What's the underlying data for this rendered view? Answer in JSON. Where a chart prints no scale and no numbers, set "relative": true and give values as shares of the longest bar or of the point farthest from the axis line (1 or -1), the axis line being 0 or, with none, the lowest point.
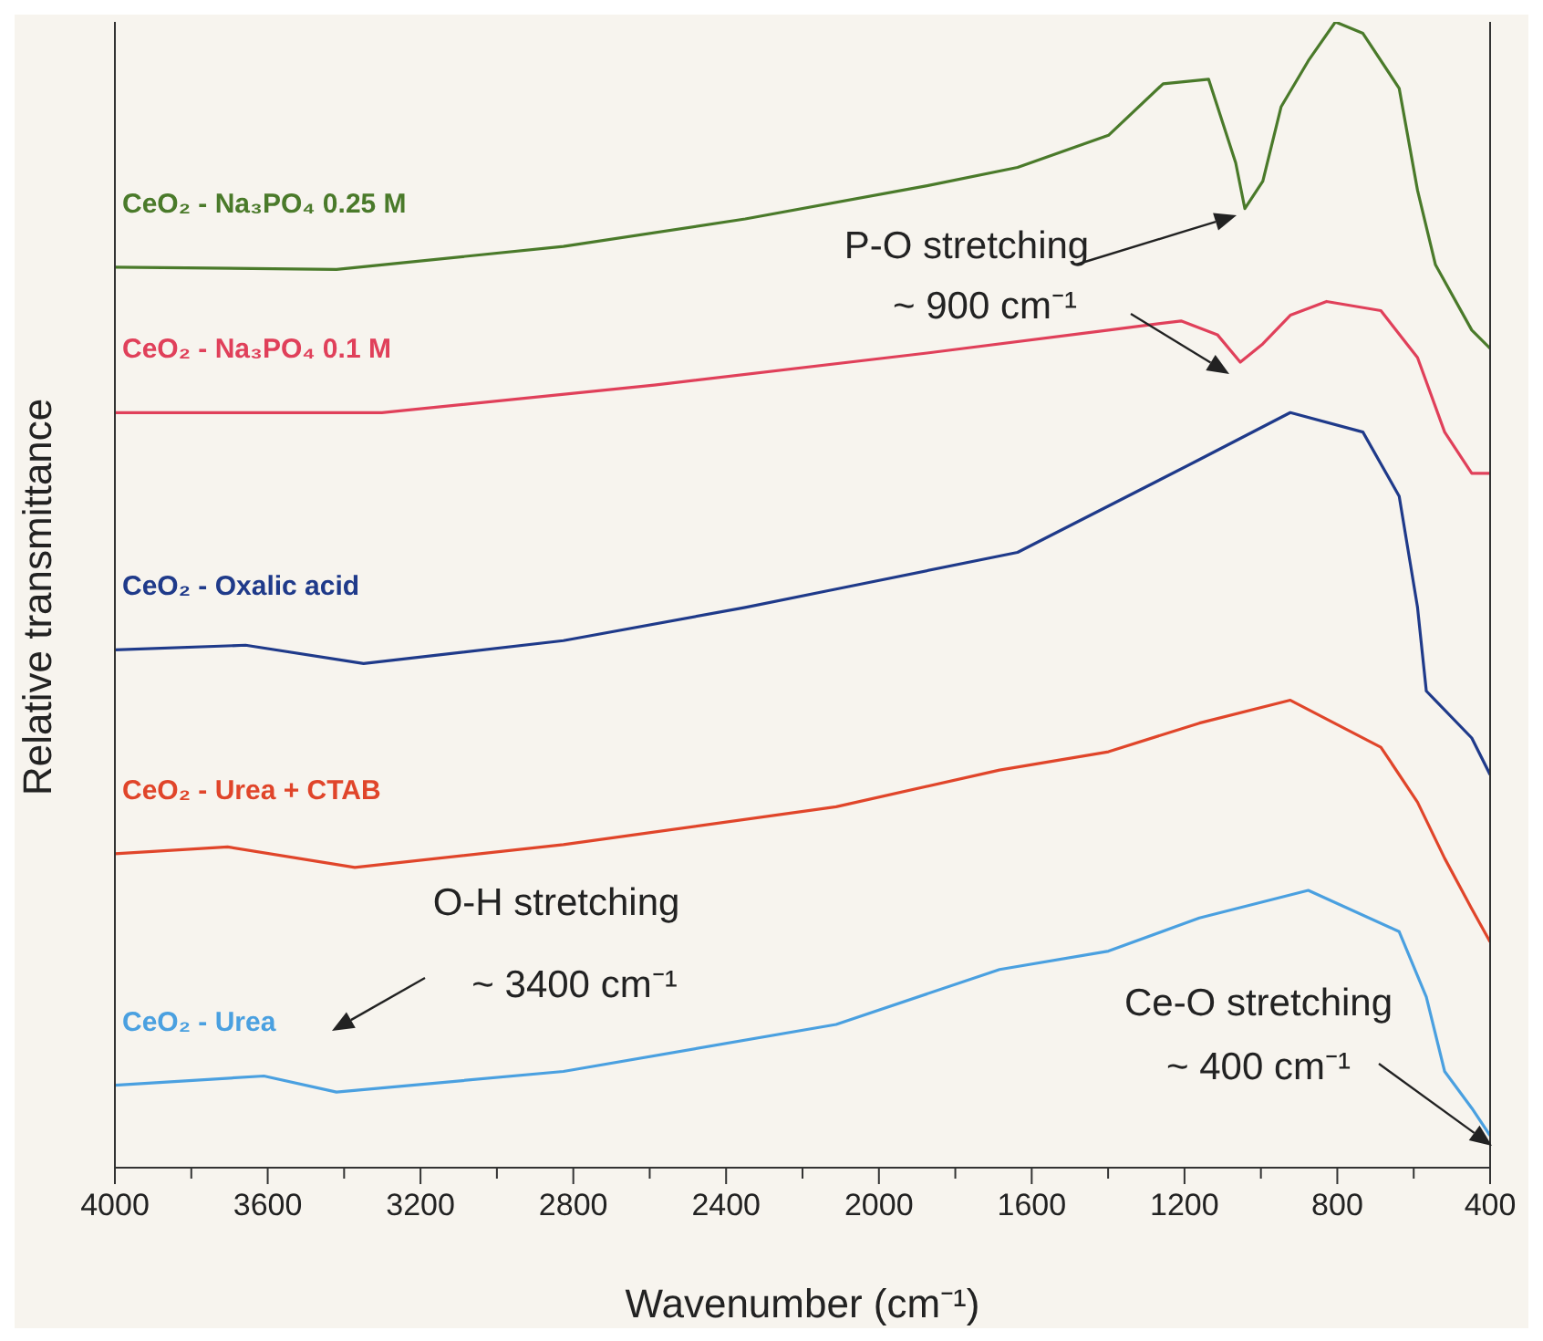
{
  "chart_data": {
    "type": "line",
    "relative": true,
    "xlabel": "Wavenumber (cm⁻¹)",
    "ylabel": "Relative transmittance",
    "xlim": [
      4000,
      400
    ],
    "xticks": [
      4000,
      {
        "value": 3800,
        "label": null
      },
      3600,
      {
        "value": 3400,
        "label": null
      },
      3200,
      {
        "value": 3000,
        "label": null
      },
      2800,
      {
        "value": 2600,
        "label": null
      },
      2400,
      {
        "value": 2200,
        "label": null
      },
      2000,
      {
        "value": 1800,
        "label": null
      },
      1600,
      {
        "value": 1400,
        "label": null
      },
      1200,
      {
        "value": 1000,
        "label": null
      },
      800,
      {
        "value": 600,
        "label": null
      },
      400
    ],
    "marker": "none",
    "line_style": "solid",
    "series": [
      {
        "name": "CeO₂ - Na₃PO₄ 0.25 M",
        "color": "#4a7a2a",
        "x": [
          4000,
          3420,
          2826,
          2350,
          1874,
          1637,
          1399,
          1256,
          1137,
          1066,
          1042,
          995,
          947,
          876,
          805,
          733,
          638,
          590,
          543,
          448,
          400
        ],
        "values": [
          0.786,
          0.784,
          0.804,
          0.828,
          0.857,
          0.873,
          0.901,
          0.946,
          0.95,
          0.877,
          0.837,
          0.861,
          0.926,
          0.966,
          1,
          0.99,
          0.942,
          0.853,
          0.788,
          0.731,
          0.715
        ]
      },
      {
        "name": "CeO₂ - Na₃PO₄ 0.1 M",
        "color": "#e0405a",
        "x": [
          4000,
          3301,
          2588,
          1874,
          1399,
          1209,
          1114,
          1054,
          995,
          923,
          828,
          686,
          590,
          519,
          448,
          400
        ],
        "values": [
          0.659,
          0.659,
          0.683,
          0.711,
          0.731,
          0.739,
          0.727,
          0.703,
          0.719,
          0.744,
          0.756,
          0.748,
          0.707,
          0.642,
          0.606,
          0.606
        ]
      },
      {
        "name": "CeO₂ - Oxalic acid",
        "color": "#1f3a8a",
        "x": [
          4000,
          3658,
          3349,
          2826,
          2350,
          2112,
          1637,
          1161,
          923,
          733,
          638,
          590,
          567,
          448,
          400
        ],
        "values": [
          0.452,
          0.456,
          0.44,
          0.46,
          0.489,
          0.505,
          0.537,
          0.618,
          0.659,
          0.642,
          0.586,
          0.489,
          0.416,
          0.375,
          0.343
        ]
      },
      {
        "name": "CeO₂ - Urea + CTAB",
        "color": "#e0452a",
        "x": [
          4000,
          3705,
          3372,
          2826,
          2112,
          1684,
          1399,
          1161,
          923,
          686,
          590,
          519,
          448,
          400
        ],
        "values": [
          0.274,
          0.28,
          0.262,
          0.282,
          0.315,
          0.347,
          0.363,
          0.388,
          0.408,
          0.367,
          0.319,
          0.27,
          0.226,
          0.197
        ]
      },
      {
        "name": "CeO₂ - Urea",
        "color": "#4aa0e0",
        "x": [
          4000,
          3610,
          3420,
          2826,
          2112,
          1684,
          1399,
          1161,
          876,
          638,
          567,
          519,
          448,
          400
        ],
        "values": [
          0.072,
          0.08,
          0.066,
          0.084,
          0.125,
          0.173,
          0.189,
          0.218,
          0.242,
          0.206,
          0.149,
          0.084,
          0.052,
          0.028
        ]
      }
    ],
    "annotations": [
      "P-O stretching\n~ 900 cm⁻¹",
      "O-H stretching\n~ 3400 cm⁻¹",
      "Ce-O stretching\n~ 400 cm⁻¹"
    ]
  }
}
